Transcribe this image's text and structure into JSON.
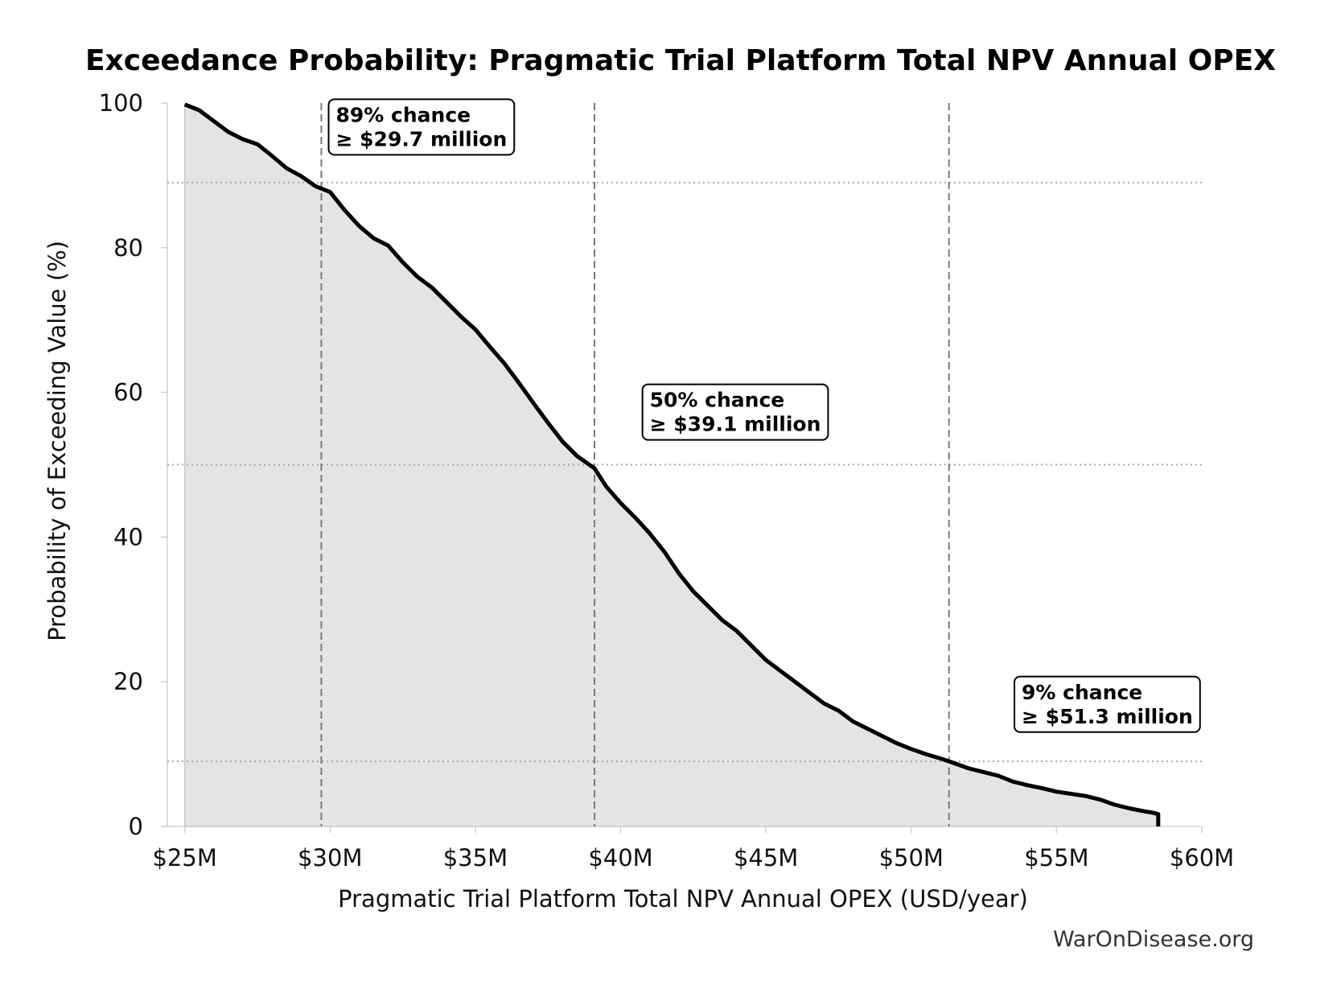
{
  "chart_data": {
    "type": "area",
    "title": "Exceedance Probability: Pragmatic Trial Platform Total NPV Annual OPEX",
    "xlabel": "Pragmatic Trial Platform Total NPV Annual OPEX (USD/year)",
    "ylabel": "Probability of Exceeding Value (%)",
    "xlim": [
      24.4,
      60.0
    ],
    "ylim": [
      0,
      100
    ],
    "x_unit": "million USD/year",
    "x_ticks": [
      25,
      30,
      35,
      40,
      45,
      50,
      55,
      60
    ],
    "x_tick_labels": [
      "$25M",
      "$30M",
      "$35M",
      "$40M",
      "$45M",
      "$50M",
      "$55M",
      "$60M"
    ],
    "y_ticks": [
      0,
      20,
      40,
      60,
      80,
      100
    ],
    "y_tick_labels": [
      "0",
      "20",
      "40",
      "60",
      "80",
      "100"
    ],
    "grid": false,
    "fill_color": "#e4e4e4",
    "line_color": "#000000",
    "series": [
      {
        "x": [
          25.0,
          25.5,
          26.0,
          26.5,
          27.0,
          27.5,
          28.0,
          28.5,
          29.0,
          29.5,
          30.0,
          30.5,
          31.0,
          31.5,
          32.0,
          32.5,
          33.0,
          33.5,
          34.0,
          34.5,
          35.0,
          35.5,
          36.0,
          36.5,
          37.0,
          37.5,
          38.0,
          38.5,
          39.1,
          39.5,
          40.0,
          40.5,
          41.0,
          41.5,
          42.0,
          42.5,
          43.0,
          43.5,
          44.0,
          44.5,
          45.0,
          45.5,
          46.0,
          46.5,
          47.0,
          47.5,
          48.0,
          48.5,
          49.0,
          49.5,
          50.0,
          50.5,
          51.0,
          51.3,
          52.0,
          52.5,
          53.0,
          53.5,
          54.0,
          54.5,
          55.0,
          55.5,
          56.0,
          56.5,
          57.0,
          57.5,
          58.0,
          58.3,
          58.5,
          58.5
        ],
        "y": [
          99.8,
          99.0,
          97.5,
          96.0,
          95.0,
          94.3,
          92.7,
          91.0,
          89.9,
          88.5,
          87.7,
          85.2,
          83.0,
          81.3,
          80.3,
          78.0,
          76.0,
          74.5,
          72.5,
          70.5,
          68.7,
          66.3,
          64.0,
          61.3,
          58.5,
          55.8,
          53.2,
          51.2,
          49.5,
          47.0,
          44.7,
          42.7,
          40.5,
          38.0,
          35.0,
          32.5,
          30.5,
          28.5,
          27.0,
          25.0,
          23.0,
          21.5,
          20.0,
          18.5,
          17.0,
          16.0,
          14.5,
          13.5,
          12.5,
          11.5,
          10.7,
          10.0,
          9.4,
          9.0,
          8.0,
          7.5,
          7.0,
          6.2,
          5.7,
          5.3,
          4.8,
          4.5,
          4.2,
          3.7,
          3.0,
          2.5,
          2.1,
          1.9,
          1.7,
          0.0
        ]
      }
    ],
    "vlines": [
      29.7,
      39.1,
      51.3
    ],
    "hlines": [
      89,
      50,
      9
    ],
    "annotations": [
      {
        "line1": "89% chance",
        "line2": "≥ $29.7 million",
        "x": 30.2,
        "y": 97.4
      },
      {
        "line1": "50% chance",
        "line2": "≥ $39.1 million",
        "x": 41.0,
        "y": 58.0
      },
      {
        "line1": "9% chance",
        "line2": "≥ $51.3 million",
        "x": 53.8,
        "y": 17.6
      }
    ],
    "source": "WarOnDisease.org"
  }
}
